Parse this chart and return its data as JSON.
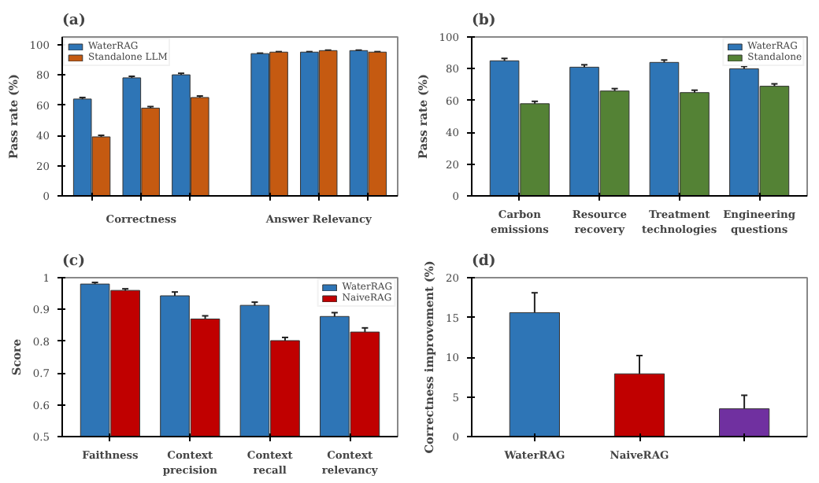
{
  "chart_data": [
    {
      "type": "bar",
      "title": "(a)",
      "ylabel": "Pass rate (%)",
      "categories": [
        null,
        null,
        null,
        null,
        null,
        null
      ],
      "annotations": [
        "Correctness",
        "Answer Relevancy"
      ],
      "ylim": [
        0,
        105
      ],
      "yticks": [
        0,
        20,
        40,
        60,
        80,
        100
      ],
      "grid": false,
      "legend": "top left",
      "series": [
        {
          "name": "WaterRAG",
          "color": "#2e75b6",
          "values": [
            64,
            78,
            80,
            94,
            95,
            96
          ],
          "errors": [
            1,
            1,
            1,
            0.3,
            0.3,
            0.3
          ]
        },
        {
          "name": "Standalone LLM",
          "color": "#c55a11",
          "values": [
            39,
            58,
            65,
            95,
            96,
            95
          ],
          "errors": [
            1,
            1,
            1,
            0.3,
            0.3,
            0.3
          ]
        }
      ]
    },
    {
      "type": "bar",
      "title": "(b)",
      "ylabel": "Pass rate (%)",
      "categories": [
        "Carbon emissions",
        "Resource recovery",
        "Treatment technologies",
        "Engineering questions"
      ],
      "ylim": [
        0,
        100
      ],
      "yticks": [
        0,
        20,
        40,
        60,
        80,
        100
      ],
      "grid": false,
      "legend": "top right",
      "series": [
        {
          "name": "WaterRAG",
          "color": "#2e75b6",
          "values": [
            85,
            81,
            84,
            80
          ],
          "errors": [
            1.5,
            1.5,
            1.5,
            1.5
          ]
        },
        {
          "name": "Standalone",
          "color": "#548235",
          "values": [
            58,
            66,
            65,
            69
          ],
          "errors": [
            1.5,
            1.5,
            1.5,
            1.5
          ]
        }
      ]
    },
    {
      "type": "bar",
      "title": "(c)",
      "ylabel": "Score",
      "categories": [
        "Faithness",
        "Context precision",
        "Context recall",
        "Context relevancy"
      ],
      "ylim": [
        0.5,
        1.0
      ],
      "yticks": [
        0.5,
        0.6,
        0.7,
        0.8,
        0.9,
        1.0
      ],
      "grid": false,
      "legend": "top right",
      "series": [
        {
          "name": "WaterRAG",
          "color": "#2e75b6",
          "values": [
            0.98,
            0.943,
            0.913,
            0.878
          ],
          "errors": [
            0.005,
            0.012,
            0.01,
            0.012
          ]
        },
        {
          "name": "NaiveRAG",
          "color": "#c00000",
          "values": [
            0.96,
            0.87,
            0.802,
            0.829
          ],
          "errors": [
            0.005,
            0.01,
            0.01,
            0.013
          ]
        }
      ]
    },
    {
      "type": "bar",
      "title": "(d)",
      "ylabel": "Correctness improvement (%)",
      "categories": [
        "WaterRAG",
        "NaiveRAG",
        null
      ],
      "ylim": [
        0,
        20
      ],
      "yticks": [
        0,
        5,
        10,
        15,
        20
      ],
      "grid": false,
      "values": [
        15.6,
        7.9,
        3.5
      ],
      "colors": [
        "#2e75b6",
        "#c00000",
        "#7030a0"
      ],
      "errors": [
        2.5,
        2.3,
        1.7
      ]
    }
  ]
}
